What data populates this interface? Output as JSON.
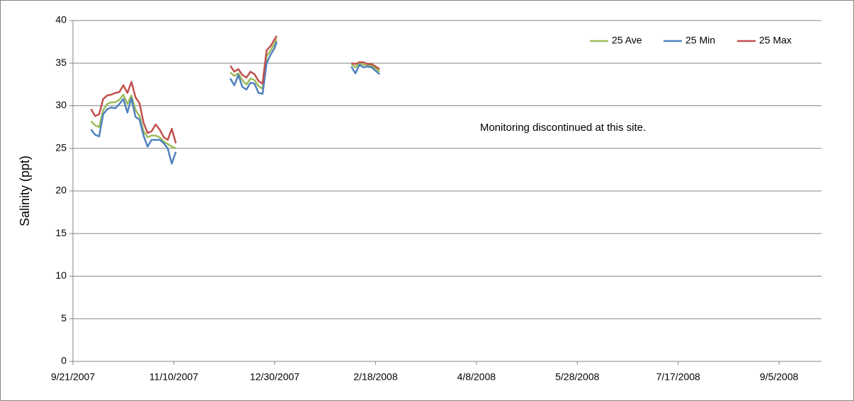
{
  "chart_data": {
    "type": "line",
    "ylabel": "Salinity (ppt)",
    "annotation": "Monitoring discontinued at this site.",
    "x": [
      "9/30/2007",
      "10/2/2007",
      "10/4/2007",
      "10/6/2007",
      "10/8/2007",
      "10/10/2007",
      "10/12/2007",
      "10/14/2007",
      "10/16/2007",
      "10/18/2007",
      "10/20/2007",
      "10/22/2007",
      "10/24/2007",
      "10/26/2007",
      "10/28/2007",
      "10/30/2007",
      "11/1/2007",
      "11/3/2007",
      "11/5/2007",
      "11/7/2007",
      "11/9/2007",
      "11/11/2007",
      "11/25/2007",
      "12/8/2007",
      "12/10/2007",
      "12/12/2007",
      "12/14/2007",
      "12/16/2007",
      "12/18/2007",
      "12/20/2007",
      "12/22/2007",
      "12/24/2007",
      "12/26/2007",
      "12/28/2007",
      "12/30/2007",
      "12/31/2007",
      "1/20/2008",
      "2/6/2008",
      "2/8/2008",
      "2/10/2008",
      "2/12/2008",
      "2/14/2008",
      "2/16/2008",
      "2/18/2008",
      "2/20/2008"
    ],
    "series": [
      {
        "name": "25 Ave",
        "color": "#9bbb59",
        "values": [
          28.2,
          27.7,
          27.5,
          29.5,
          30.2,
          30.4,
          30.4,
          30.7,
          31.3,
          30.2,
          31.2,
          29.5,
          28.8,
          27.0,
          26.3,
          26.5,
          26.5,
          26.3,
          25.8,
          25.5,
          25.2,
          25.0,
          null,
          33.9,
          33.5,
          33.8,
          33.0,
          32.5,
          33.2,
          33.0,
          32.3,
          32.0,
          35.8,
          36.5,
          37.3,
          37.8,
          null,
          34.9,
          34.5,
          35.0,
          34.8,
          34.8,
          34.7,
          34.4,
          34.0
        ]
      },
      {
        "name": "25 Min",
        "color": "#4f81bd",
        "values": [
          27.2,
          26.6,
          26.4,
          29.0,
          29.6,
          29.8,
          29.7,
          30.2,
          30.8,
          29.2,
          30.9,
          28.7,
          28.4,
          26.5,
          25.2,
          26.0,
          26.0,
          26.0,
          25.6,
          25.0,
          23.2,
          24.6,
          null,
          33.2,
          32.4,
          33.6,
          32.2,
          31.9,
          32.7,
          32.6,
          31.5,
          31.4,
          35.0,
          36.0,
          36.8,
          37.5,
          null,
          34.6,
          33.8,
          34.8,
          34.5,
          34.6,
          34.5,
          34.1,
          33.7
        ]
      },
      {
        "name": "25 Max",
        "color": "#c0504d",
        "values": [
          29.6,
          28.8,
          29.0,
          30.8,
          31.2,
          31.3,
          31.5,
          31.6,
          32.4,
          31.5,
          32.8,
          31.0,
          30.3,
          28.0,
          26.8,
          27.0,
          27.8,
          27.2,
          26.3,
          26.0,
          27.3,
          25.6,
          null,
          34.7,
          34.0,
          34.3,
          33.6,
          33.3,
          34.0,
          33.7,
          32.9,
          32.6,
          36.5,
          37.0,
          37.8,
          38.2,
          null,
          35.0,
          34.9,
          35.1,
          35.1,
          34.9,
          34.9,
          34.6,
          34.3
        ]
      }
    ],
    "xlim": [
      "9/21/2007",
      "9/26/2008"
    ],
    "xticks": [
      "9/21/2007",
      "11/10/2007",
      "12/30/2007",
      "2/18/2008",
      "4/8/2008",
      "5/28/2008",
      "7/17/2008",
      "9/5/2008"
    ],
    "ylim": [
      0,
      40
    ],
    "yticks": [
      0,
      5,
      10,
      15,
      20,
      25,
      30,
      35,
      40
    ],
    "grid": true,
    "legend": "upper right"
  }
}
